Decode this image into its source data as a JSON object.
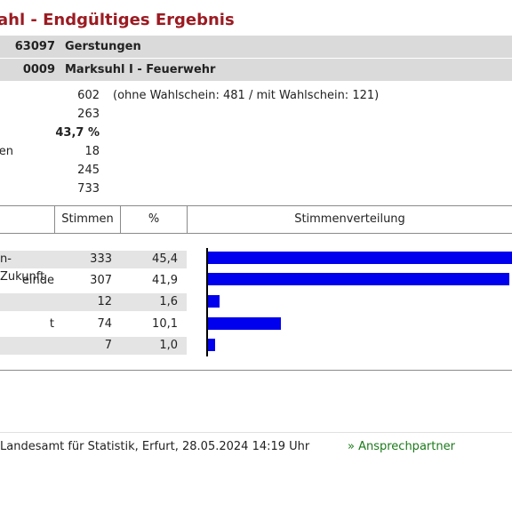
{
  "title": "ahl - Endgültiges Ergebnis",
  "region": {
    "code": "63097",
    "name": "Gerstungen"
  },
  "district": {
    "code": "0009",
    "name": "Marksuhl I - Feuerwehr"
  },
  "stats": [
    {
      "label": "",
      "value": "602",
      "note": "(ohne Wahlschein: 481 / mit Wahlschein: 121)"
    },
    {
      "label": "",
      "value": "263",
      "note": ""
    },
    {
      "label": "",
      "value": "43,7 %",
      "note": ""
    },
    {
      "label": "en",
      "value": "18",
      "note": ""
    },
    {
      "label": "",
      "value": "245",
      "note": ""
    },
    {
      "label": "",
      "value": "733",
      "note": ""
    }
  ],
  "table": {
    "headers": {
      "votes": "Stimmen",
      "percent": "%",
      "distribution": "Stimmenverteilung"
    },
    "rows": [
      {
        "name": "n-Zukunft",
        "votes": "333",
        "percent": "45,4"
      },
      {
        "name": "einde",
        "votes": "307",
        "percent": "41,9"
      },
      {
        "name": "",
        "votes": "12",
        "percent": "1,6"
      },
      {
        "name": "t",
        "votes": "74",
        "percent": "10,1"
      },
      {
        "name": "",
        "votes": "7",
        "percent": "1,0"
      }
    ]
  },
  "chart_data": {
    "type": "bar",
    "categories": [
      "n-Zukunft",
      "einde",
      "",
      "t",
      ""
    ],
    "values": [
      45.4,
      41.9,
      1.6,
      10.1,
      1.0
    ]
  },
  "colors": {
    "title": "#9b1b22",
    "bar": "#0000ee",
    "link": "#1a7a1a"
  },
  "footer": {
    "text": "Landesamt für Statistik, Erfurt, 28.05.2024 14:19 Uhr",
    "contact_label": "» Ansprechpartner"
  }
}
